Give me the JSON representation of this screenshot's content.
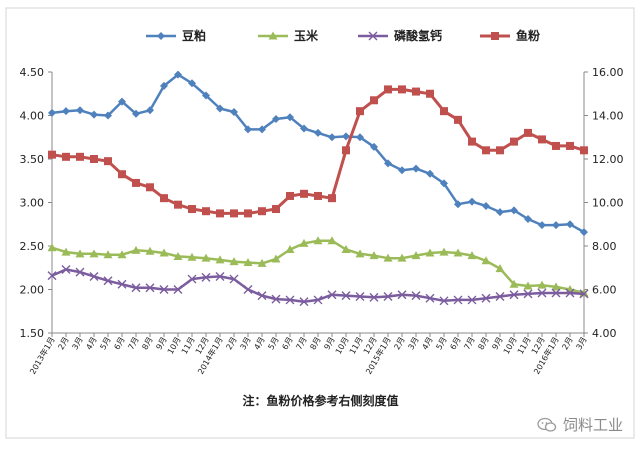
{
  "chart_data": {
    "type": "line",
    "title": "",
    "note": "注：鱼粉价格参考右侧刻度值",
    "y_left": {
      "min": 1.5,
      "max": 4.5,
      "ticks": [
        "1.50",
        "2.00",
        "2.50",
        "3.00",
        "3.50",
        "4.00",
        "4.50"
      ]
    },
    "y_right": {
      "min": 4.0,
      "max": 16.0,
      "ticks": [
        "4.00",
        "6.00",
        "8.00",
        "10.00",
        "12.00",
        "14.00",
        "16.00"
      ]
    },
    "x_labels": [
      "2013年1月",
      "2月",
      "3月",
      "4月",
      "5月",
      "6月",
      "7月",
      "8月",
      "9月",
      "10月",
      "11月",
      "12月",
      "2014年1月",
      "2月",
      "3月",
      "4月",
      "5月",
      "6月",
      "7月",
      "8月",
      "9月",
      "10月",
      "11月",
      "12月",
      "2015年1月",
      "2月",
      "3月",
      "4月",
      "5月",
      "6月",
      "7月",
      "8月",
      "9月",
      "10月",
      "11月",
      "12月",
      "2016年1月",
      "2月",
      "3月"
    ],
    "series": [
      {
        "name": "豆粕",
        "axis": "left",
        "color": "#4F81BD",
        "marker": "diamond",
        "values": [
          4.03,
          4.05,
          4.06,
          4.01,
          4.0,
          4.16,
          4.02,
          4.06,
          4.34,
          4.47,
          4.37,
          4.23,
          4.08,
          4.04,
          3.84,
          3.84,
          3.96,
          3.98,
          3.85,
          3.8,
          3.75,
          3.76,
          3.75,
          3.64,
          3.45,
          3.37,
          3.39,
          3.33,
          3.22,
          2.98,
          3.01,
          2.96,
          2.89,
          2.91,
          2.81,
          2.74,
          2.74,
          2.75,
          2.66
        ]
      },
      {
        "name": "玉米",
        "axis": "left",
        "color": "#9BBB59",
        "marker": "triangle",
        "values": [
          2.48,
          2.43,
          2.41,
          2.41,
          2.4,
          2.4,
          2.45,
          2.44,
          2.42,
          2.38,
          2.37,
          2.36,
          2.34,
          2.32,
          2.31,
          2.3,
          2.35,
          2.46,
          2.53,
          2.56,
          2.56,
          2.46,
          2.41,
          2.39,
          2.36,
          2.36,
          2.39,
          2.42,
          2.43,
          2.42,
          2.39,
          2.33,
          2.24,
          2.06,
          2.04,
          2.05,
          2.03,
          2.0,
          1.96
        ]
      },
      {
        "name": "磷酸氢钙",
        "axis": "left",
        "color": "#7B5C9E",
        "marker": "x",
        "values": [
          2.16,
          2.23,
          2.2,
          2.15,
          2.1,
          2.06,
          2.02,
          2.02,
          2.0,
          2.0,
          2.12,
          2.14,
          2.15,
          2.12,
          2.0,
          1.93,
          1.89,
          1.88,
          1.86,
          1.88,
          1.94,
          1.93,
          1.92,
          1.91,
          1.92,
          1.94,
          1.93,
          1.9,
          1.87,
          1.88,
          1.88,
          1.9,
          1.92,
          1.94,
          1.95,
          1.96,
          1.96,
          1.96,
          1.95
        ]
      },
      {
        "name": "鱼粉",
        "axis": "right",
        "color": "#C0504D",
        "marker": "square",
        "values": [
          12.2,
          12.1,
          12.1,
          12.0,
          11.9,
          11.3,
          10.9,
          10.7,
          10.2,
          9.9,
          9.7,
          9.6,
          9.5,
          9.5,
          9.5,
          9.6,
          9.7,
          10.3,
          10.4,
          10.3,
          10.2,
          12.4,
          14.2,
          14.7,
          15.2,
          15.2,
          15.1,
          15.0,
          14.2,
          13.8,
          12.8,
          12.4,
          12.4,
          12.8,
          13.2,
          12.9,
          12.6,
          12.6,
          12.4
        ]
      }
    ],
    "legend": "top",
    "grid": false
  },
  "watermark": {
    "text": "饲料工业",
    "icon": "chat-bubble-icon"
  }
}
